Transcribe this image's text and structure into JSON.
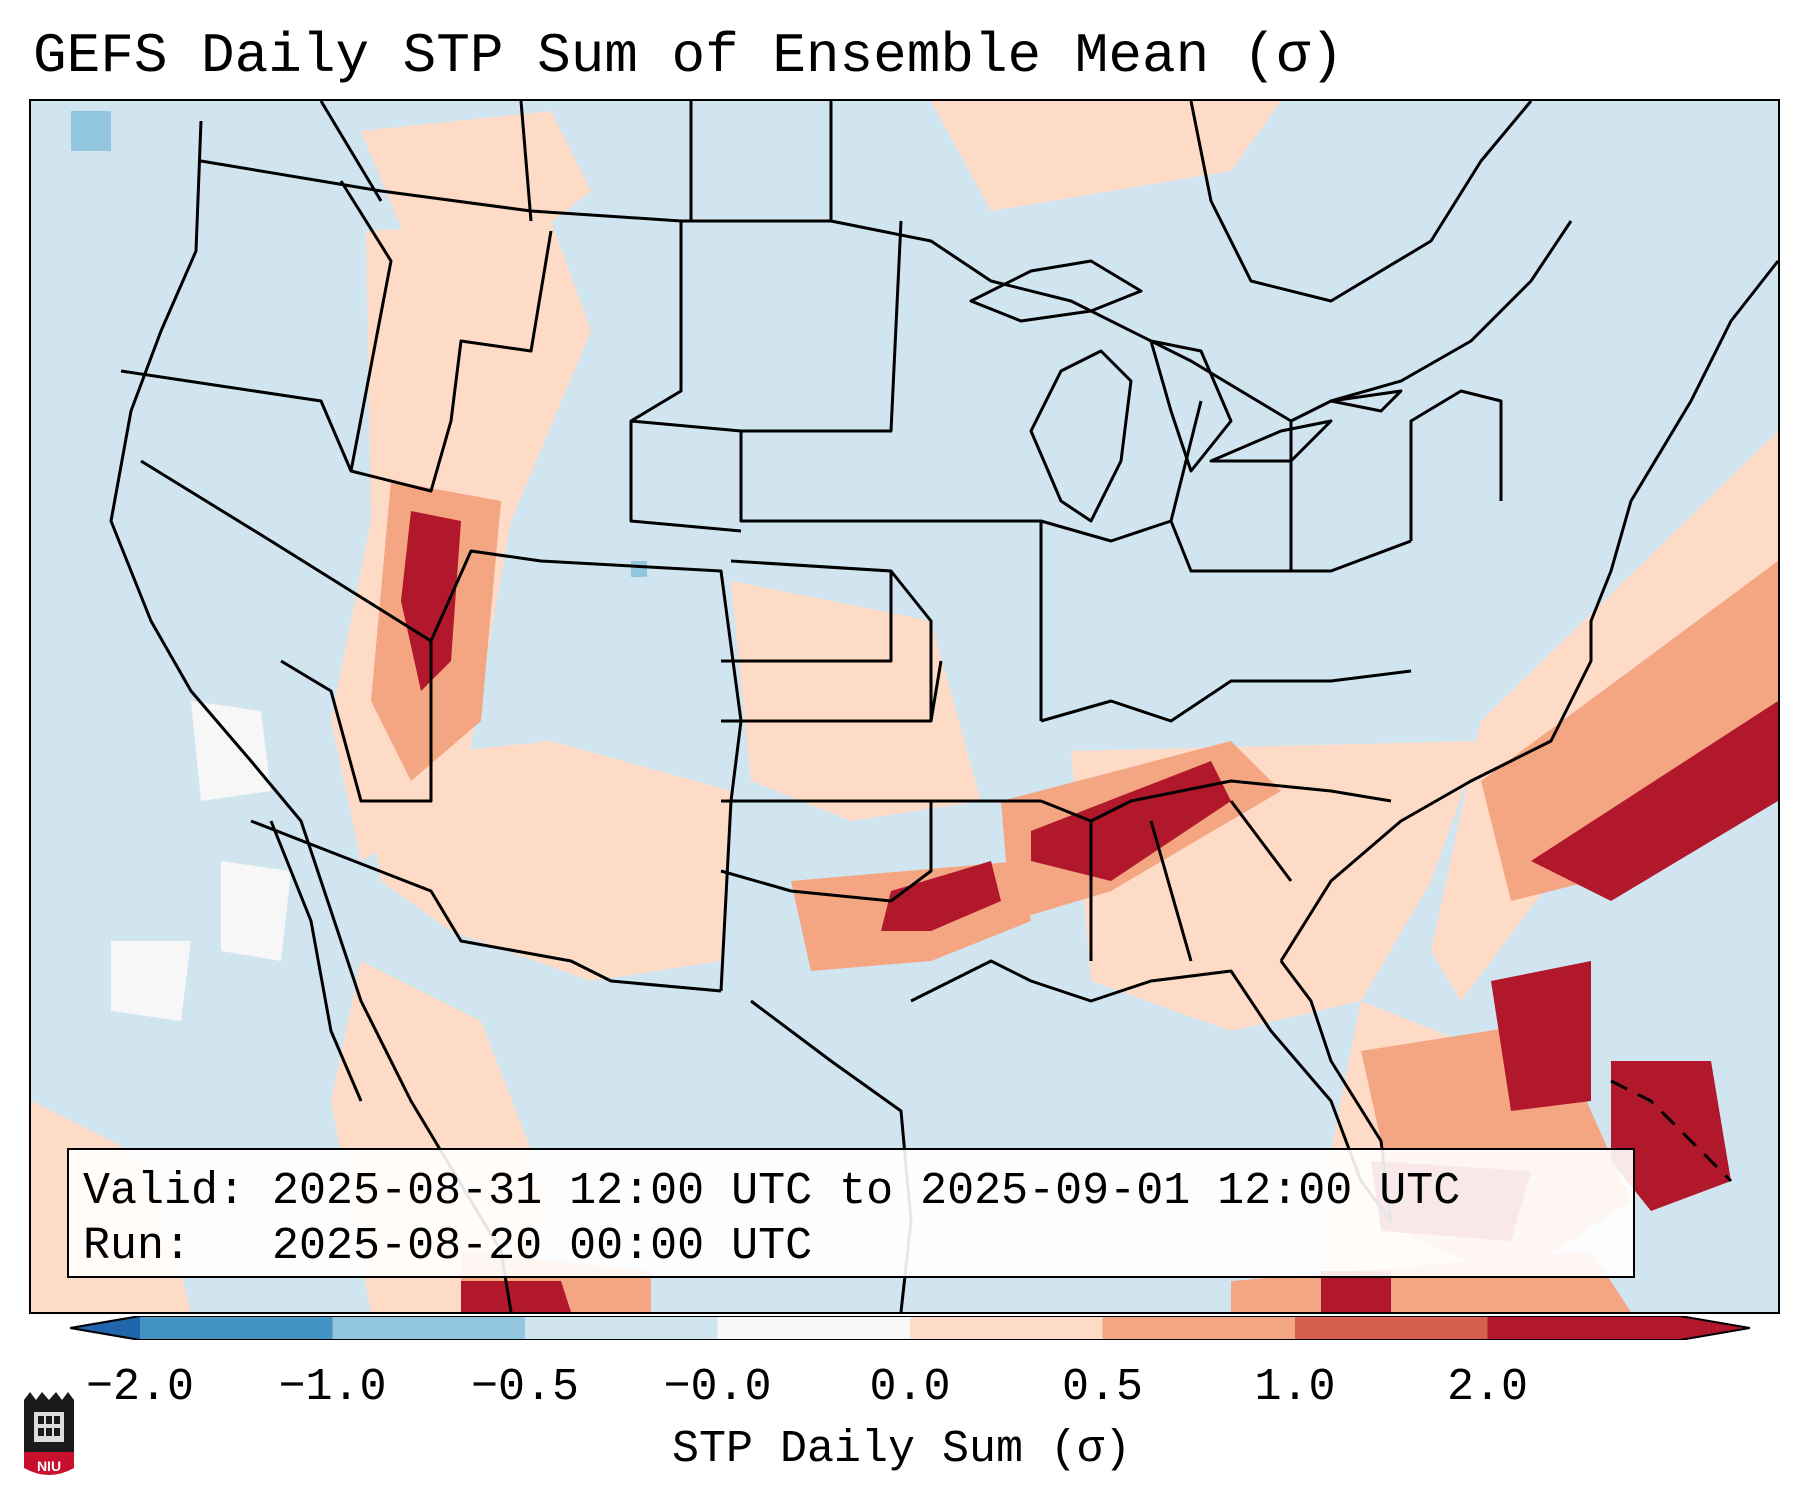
{
  "title": "GEFS Daily STP Sum of Ensemble Mean (σ)",
  "info": {
    "valid_label": "Valid:",
    "valid_value": "2025-08-31 12:00 UTC to 2025-09-01 12:00 UTC",
    "run_label": "Run:",
    "run_value": "2025-08-20 00:00 UTC"
  },
  "colorbar": {
    "label": "STP Daily Sum (σ)",
    "ticks": [
      "−2.0",
      "−1.0",
      "−0.5",
      "−0.0",
      "0.0",
      "0.5",
      "1.0",
      "2.0"
    ],
    "colors": [
      "#4393c3",
      "#92c5de",
      "#d1e5f0",
      "#f7f7f7",
      "#fddbc7",
      "#f4a582",
      "#d6604d",
      "#b2182b"
    ],
    "under_color": "#2166ac",
    "over_color": "#b2182b"
  },
  "map": {
    "background_color": "#d1e5f0",
    "region": "Contiguous United States",
    "bands": [
      {
        "name": "Mid-South severe corridor",
        "level": 2.0
      },
      {
        "name": "Southern Plains band",
        "level": 1.0
      },
      {
        "name": "Western Atlantic offshore band",
        "level": 2.0
      },
      {
        "name": "Florida / Bahamas",
        "level": 2.0
      },
      {
        "name": "Great Basin / Utah",
        "level": 1.0
      }
    ]
  },
  "logo": {
    "text": "NIU"
  }
}
